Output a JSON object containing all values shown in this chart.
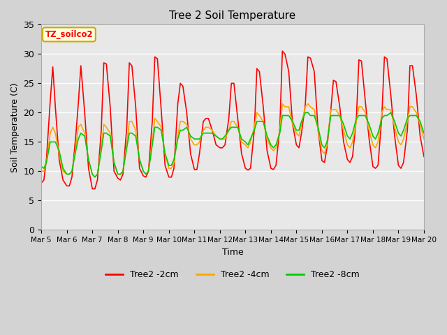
{
  "title": "Tree 2 Soil Temperature",
  "xlabel": "Time",
  "ylabel": "Soil Temperature (C)",
  "ylim": [
    0,
    35
  ],
  "xlim": [
    0,
    15
  ],
  "annotation_text": "TZ_soilco2",
  "fig_facecolor": "#d3d3d3",
  "plot_bg_color": "#e8e8e8",
  "x_tick_labels": [
    "Mar 5",
    "Mar 6",
    "Mar 7",
    "Mar 8",
    "Mar 9",
    "Mar 10",
    "Mar 11",
    "Mar 12",
    "Mar 13",
    "Mar 14",
    "Mar 15",
    "Mar 16",
    "Mar 17",
    "Mar 18",
    "Mar 19",
    "Mar 20"
  ],
  "legend_labels": [
    "Tree2 -2cm",
    "Tree2 -4cm",
    "Tree2 -8cm"
  ],
  "legend_colors": [
    "#ff0000",
    "#ffa500",
    "#00cc00"
  ],
  "line_width": 1.2,
  "series": {
    "Tree2_2cm": {
      "color": "#ff0000",
      "x": [
        0.0,
        0.1,
        0.2,
        0.35,
        0.45,
        0.55,
        0.7,
        0.85,
        1.0,
        1.1,
        1.2,
        1.35,
        1.45,
        1.55,
        1.7,
        1.85,
        2.0,
        2.1,
        2.2,
        2.35,
        2.45,
        2.55,
        2.7,
        2.85,
        3.0,
        3.1,
        3.2,
        3.35,
        3.45,
        3.55,
        3.7,
        3.85,
        4.0,
        4.1,
        4.2,
        4.35,
        4.45,
        4.55,
        4.7,
        4.85,
        5.0,
        5.1,
        5.2,
        5.35,
        5.45,
        5.55,
        5.7,
        5.85,
        6.0,
        6.1,
        6.2,
        6.35,
        6.45,
        6.55,
        6.7,
        6.85,
        7.0,
        7.1,
        7.2,
        7.35,
        7.45,
        7.55,
        7.7,
        7.85,
        8.0,
        8.1,
        8.2,
        8.35,
        8.45,
        8.55,
        8.7,
        8.85,
        9.0,
        9.1,
        9.2,
        9.35,
        9.45,
        9.55,
        9.7,
        9.85,
        10.0,
        10.1,
        10.2,
        10.35,
        10.45,
        10.55,
        10.7,
        10.85,
        11.0,
        11.1,
        11.2,
        11.35,
        11.45,
        11.55,
        11.7,
        11.85,
        12.0,
        12.1,
        12.2,
        12.35,
        12.45,
        12.55,
        12.7,
        12.85,
        13.0,
        13.1,
        13.2,
        13.35,
        13.45,
        13.55,
        13.7,
        13.85,
        14.0,
        14.1,
        14.2,
        14.35,
        14.45,
        14.55,
        14.7,
        14.85,
        15.0
      ],
      "y": [
        8.0,
        8.5,
        12.0,
        22.0,
        27.8,
        21.0,
        12.0,
        8.5,
        7.5,
        7.5,
        9.0,
        16.0,
        21.5,
        28.0,
        20.0,
        10.5,
        7.0,
        7.0,
        8.5,
        17.0,
        28.5,
        28.3,
        21.0,
        10.0,
        8.8,
        8.5,
        9.5,
        17.5,
        28.5,
        28.0,
        21.0,
        10.5,
        9.2,
        9.0,
        10.0,
        18.5,
        29.5,
        29.2,
        20.5,
        11.0,
        9.0,
        9.0,
        10.5,
        21.5,
        25.0,
        24.5,
        20.0,
        13.0,
        10.3,
        10.3,
        13.0,
        18.5,
        19.0,
        19.0,
        17.0,
        14.5,
        14.0,
        14.0,
        14.5,
        19.0,
        25.0,
        25.0,
        19.0,
        13.0,
        10.5,
        10.2,
        10.5,
        17.0,
        27.5,
        27.0,
        21.0,
        13.5,
        10.5,
        10.3,
        11.0,
        17.5,
        30.5,
        30.0,
        27.0,
        18.0,
        14.5,
        14.0,
        16.5,
        21.5,
        29.5,
        29.3,
        27.0,
        17.0,
        11.8,
        11.5,
        14.0,
        20.5,
        25.5,
        25.3,
        21.0,
        15.0,
        12.0,
        11.5,
        12.5,
        19.0,
        29.0,
        28.8,
        22.0,
        15.5,
        10.8,
        10.5,
        11.0,
        19.5,
        29.5,
        29.2,
        23.0,
        16.0,
        11.0,
        10.5,
        11.5,
        17.0,
        28.0,
        28.0,
        23.0,
        16.0,
        12.5
      ]
    },
    "Tree2_4cm": {
      "color": "#ffa500",
      "x": [
        0.0,
        0.1,
        0.2,
        0.35,
        0.45,
        0.55,
        0.7,
        0.85,
        1.0,
        1.1,
        1.2,
        1.35,
        1.45,
        1.55,
        1.7,
        1.85,
        2.0,
        2.1,
        2.2,
        2.35,
        2.45,
        2.55,
        2.7,
        2.85,
        3.0,
        3.1,
        3.2,
        3.35,
        3.45,
        3.55,
        3.7,
        3.85,
        4.0,
        4.1,
        4.2,
        4.35,
        4.45,
        4.55,
        4.7,
        4.85,
        5.0,
        5.1,
        5.2,
        5.35,
        5.45,
        5.55,
        5.7,
        5.85,
        6.0,
        6.1,
        6.2,
        6.35,
        6.45,
        6.55,
        6.7,
        6.85,
        7.0,
        7.1,
        7.2,
        7.35,
        7.45,
        7.55,
        7.7,
        7.85,
        8.0,
        8.1,
        8.2,
        8.35,
        8.45,
        8.55,
        8.7,
        8.85,
        9.0,
        9.1,
        9.2,
        9.35,
        9.45,
        9.55,
        9.7,
        9.85,
        10.0,
        10.1,
        10.2,
        10.35,
        10.45,
        10.55,
        10.7,
        10.85,
        11.0,
        11.1,
        11.2,
        11.35,
        11.45,
        11.55,
        11.7,
        11.85,
        12.0,
        12.1,
        12.2,
        12.35,
        12.45,
        12.55,
        12.7,
        12.85,
        13.0,
        13.1,
        13.2,
        13.35,
        13.45,
        13.55,
        13.7,
        13.85,
        14.0,
        14.1,
        14.2,
        14.35,
        14.45,
        14.55,
        14.7,
        14.85,
        15.0
      ],
      "y": [
        10.0,
        10.0,
        11.5,
        16.5,
        17.5,
        16.5,
        13.0,
        10.0,
        9.5,
        9.5,
        10.0,
        14.0,
        17.5,
        18.0,
        16.5,
        12.0,
        9.5,
        9.0,
        9.5,
        14.0,
        18.0,
        17.5,
        16.5,
        11.5,
        9.5,
        9.5,
        10.0,
        14.5,
        18.5,
        18.5,
        17.0,
        12.0,
        10.0,
        9.5,
        10.0,
        15.0,
        19.0,
        18.5,
        17.5,
        13.0,
        10.5,
        10.5,
        11.5,
        16.0,
        18.5,
        18.5,
        18.0,
        15.5,
        14.5,
        14.5,
        15.0,
        17.0,
        17.5,
        17.5,
        17.0,
        16.0,
        15.5,
        15.5,
        15.5,
        17.0,
        18.5,
        18.5,
        17.5,
        15.0,
        14.5,
        14.0,
        15.0,
        17.5,
        20.0,
        19.5,
        18.5,
        15.5,
        14.0,
        13.5,
        14.0,
        17.0,
        21.5,
        21.0,
        21.0,
        18.0,
        16.5,
        16.0,
        18.0,
        21.0,
        21.5,
        21.0,
        20.5,
        17.0,
        13.5,
        13.0,
        14.5,
        20.5,
        20.5,
        20.5,
        19.5,
        17.0,
        14.5,
        14.0,
        15.0,
        18.5,
        21.0,
        21.0,
        20.0,
        17.0,
        14.5,
        14.0,
        15.0,
        20.0,
        21.0,
        20.5,
        20.5,
        17.5,
        15.0,
        14.5,
        15.5,
        18.5,
        21.0,
        21.0,
        20.0,
        18.0,
        15.5
      ]
    },
    "Tree2_8cm": {
      "color": "#00cc00",
      "x": [
        0.0,
        0.1,
        0.2,
        0.35,
        0.45,
        0.55,
        0.7,
        0.85,
        1.0,
        1.1,
        1.2,
        1.35,
        1.45,
        1.55,
        1.7,
        1.85,
        2.0,
        2.1,
        2.2,
        2.35,
        2.45,
        2.55,
        2.7,
        2.85,
        3.0,
        3.1,
        3.2,
        3.35,
        3.45,
        3.55,
        3.7,
        3.85,
        4.0,
        4.1,
        4.2,
        4.35,
        4.45,
        4.55,
        4.7,
        4.85,
        5.0,
        5.1,
        5.2,
        5.35,
        5.45,
        5.55,
        5.7,
        5.85,
        6.0,
        6.1,
        6.2,
        6.35,
        6.45,
        6.55,
        6.7,
        6.85,
        7.0,
        7.1,
        7.2,
        7.35,
        7.45,
        7.55,
        7.7,
        7.85,
        8.0,
        8.1,
        8.2,
        8.35,
        8.45,
        8.55,
        8.7,
        8.85,
        9.0,
        9.1,
        9.2,
        9.35,
        9.45,
        9.55,
        9.7,
        9.85,
        10.0,
        10.1,
        10.2,
        10.35,
        10.45,
        10.55,
        10.7,
        10.85,
        11.0,
        11.1,
        11.2,
        11.35,
        11.45,
        11.55,
        11.7,
        11.85,
        12.0,
        12.1,
        12.2,
        12.35,
        12.45,
        12.55,
        12.7,
        12.85,
        13.0,
        13.1,
        13.2,
        13.35,
        13.45,
        13.55,
        13.7,
        13.85,
        14.0,
        14.1,
        14.2,
        14.35,
        14.45,
        14.55,
        14.7,
        14.85,
        15.0
      ],
      "y": [
        10.8,
        10.5,
        11.5,
        15.0,
        15.0,
        15.0,
        13.5,
        10.5,
        9.5,
        9.5,
        10.0,
        13.5,
        15.5,
        16.5,
        16.0,
        12.0,
        9.5,
        9.0,
        9.5,
        13.5,
        16.5,
        16.5,
        16.0,
        11.5,
        9.5,
        9.5,
        10.0,
        14.0,
        16.5,
        16.5,
        16.0,
        12.0,
        10.0,
        9.5,
        10.0,
        14.5,
        17.5,
        17.5,
        17.0,
        13.0,
        11.0,
        11.0,
        12.0,
        15.5,
        17.0,
        17.0,
        17.5,
        16.0,
        15.5,
        15.5,
        15.5,
        16.5,
        16.5,
        16.5,
        16.5,
        16.0,
        15.5,
        15.5,
        16.0,
        17.0,
        17.5,
        17.5,
        17.5,
        15.5,
        15.0,
        14.5,
        15.5,
        17.0,
        18.5,
        18.5,
        18.5,
        16.0,
        14.5,
        14.0,
        14.5,
        16.5,
        19.5,
        19.5,
        19.5,
        18.5,
        17.0,
        17.0,
        18.5,
        20.0,
        20.0,
        19.5,
        19.5,
        17.5,
        14.5,
        14.0,
        15.0,
        19.5,
        19.5,
        19.5,
        19.5,
        18.0,
        16.0,
        15.5,
        16.5,
        19.0,
        19.5,
        19.5,
        19.5,
        18.0,
        16.0,
        15.5,
        16.5,
        19.0,
        19.5,
        19.5,
        20.0,
        18.5,
        16.5,
        16.0,
        17.0,
        19.0,
        19.5,
        19.5,
        19.5,
        18.5,
        16.5
      ]
    }
  }
}
